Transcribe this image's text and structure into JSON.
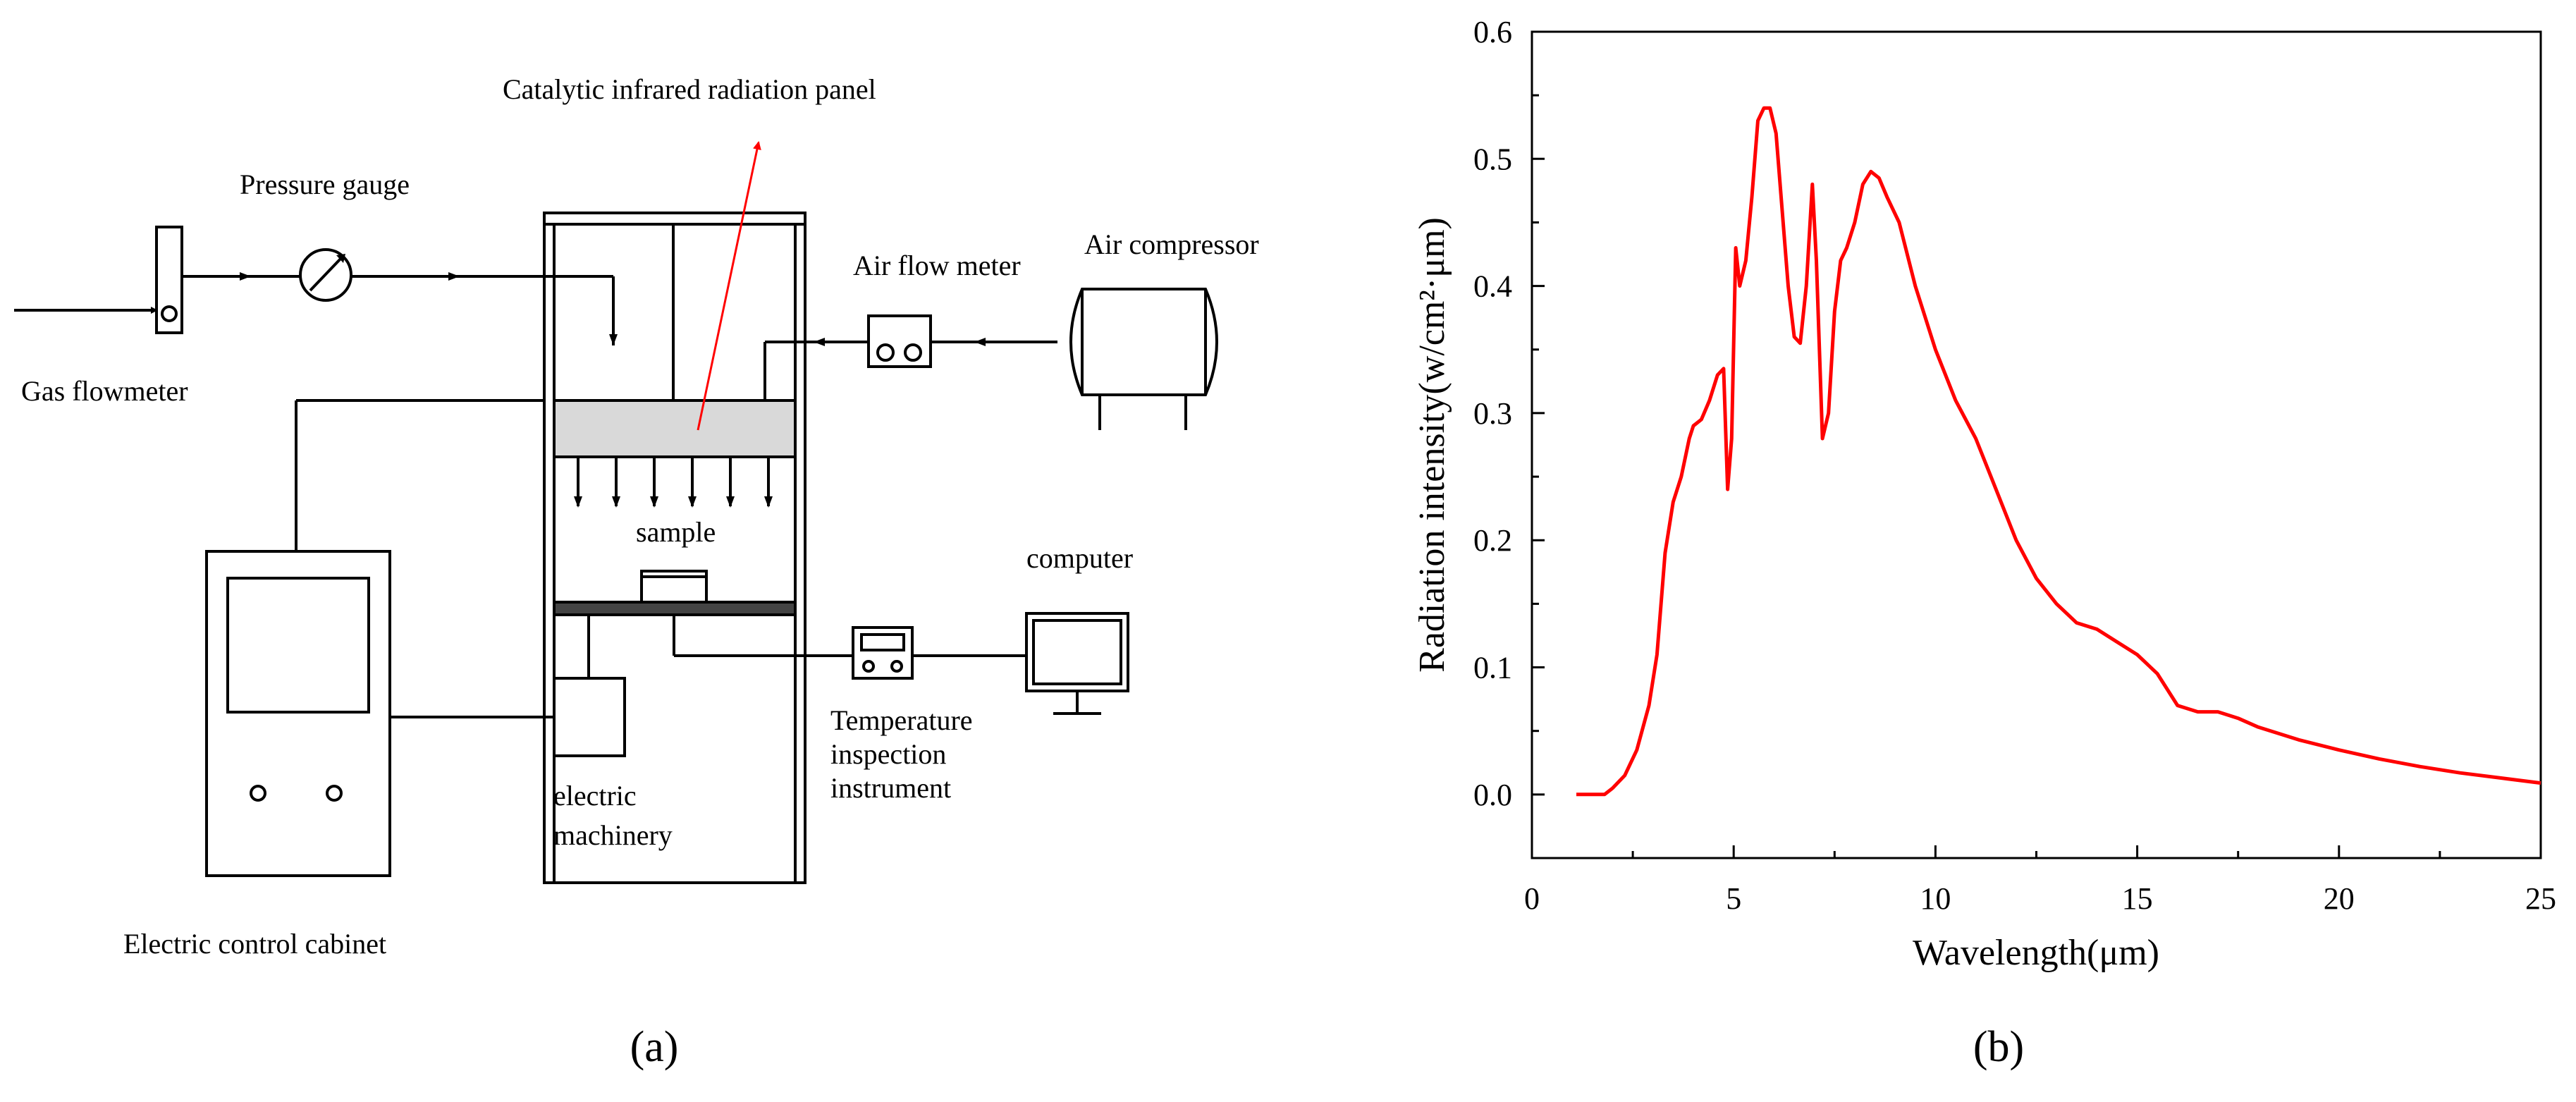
{
  "panel_a": {
    "caption": "(a)",
    "labels": {
      "catalytic_panel": "Catalytic infrared radiation panel",
      "pressure_gauge": "Pressure gauge",
      "air_flow_meter": "Air flow meter",
      "air_compressor": "Air compressor",
      "gas_flowmeter": "Gas flowmeter",
      "sample": "sample",
      "computer": "computer",
      "temperature_line1": "Temperature",
      "temperature_line2": "inspection",
      "temperature_line3": "instrument",
      "electric_line1": "electric",
      "electric_line2": "machinery",
      "cabinet": "Electric control cabinet"
    },
    "colors": {
      "line": "#000000",
      "pointer": "#ff0000",
      "panel_fill": "#d9d9d9"
    }
  },
  "panel_b": {
    "caption": "(b)"
  },
  "chart_data": {
    "type": "line",
    "title": "",
    "xlabel": "Wavelength(μm)",
    "ylabel": "Radiation intensity(w/cm²·μm)",
    "xlim": [
      0,
      25
    ],
    "ylim": [
      -0.05,
      0.6
    ],
    "xticks": [
      0,
      5,
      10,
      15,
      20,
      25
    ],
    "yticks": [
      0.0,
      0.1,
      0.2,
      0.3,
      0.4,
      0.5,
      0.6
    ],
    "ytick_labels": [
      "0.0",
      "0.1",
      "0.2",
      "0.3",
      "0.4",
      "0.5",
      "0.6"
    ],
    "series": [
      {
        "color": "#ff0000",
        "x": [
          1.1,
          1.5,
          1.8,
          2.0,
          2.3,
          2.6,
          2.9,
          3.1,
          3.3,
          3.5,
          3.7,
          3.9,
          4.0,
          4.2,
          4.4,
          4.6,
          4.75,
          4.85,
          4.95,
          5.05,
          5.15,
          5.3,
          5.45,
          5.6,
          5.75,
          5.9,
          6.05,
          6.2,
          6.35,
          6.5,
          6.65,
          6.8,
          6.95,
          7.05,
          7.2,
          7.35,
          7.5,
          7.65,
          7.8,
          8.0,
          8.2,
          8.4,
          8.6,
          8.8,
          9.1,
          9.5,
          10.0,
          10.5,
          11.0,
          11.5,
          12.0,
          12.5,
          13.0,
          13.5,
          14.0,
          14.5,
          15.0,
          15.5,
          16.0,
          16.5,
          17.0,
          17.5,
          18.0,
          19.0,
          20.0,
          21.0,
          22.0,
          23.0,
          24.0,
          25.0
        ],
        "y": [
          0.0,
          0.0,
          0.0,
          0.005,
          0.015,
          0.035,
          0.07,
          0.11,
          0.19,
          0.23,
          0.25,
          0.28,
          0.29,
          0.295,
          0.31,
          0.33,
          0.335,
          0.24,
          0.28,
          0.43,
          0.4,
          0.42,
          0.47,
          0.53,
          0.54,
          0.54,
          0.52,
          0.46,
          0.4,
          0.36,
          0.355,
          0.4,
          0.48,
          0.42,
          0.28,
          0.3,
          0.38,
          0.42,
          0.43,
          0.45,
          0.48,
          0.49,
          0.485,
          0.47,
          0.45,
          0.4,
          0.35,
          0.31,
          0.28,
          0.24,
          0.2,
          0.17,
          0.15,
          0.135,
          0.13,
          0.12,
          0.11,
          0.095,
          0.07,
          0.065,
          0.065,
          0.06,
          0.053,
          0.043,
          0.035,
          0.028,
          0.022,
          0.017,
          0.013,
          0.009
        ]
      }
    ]
  }
}
